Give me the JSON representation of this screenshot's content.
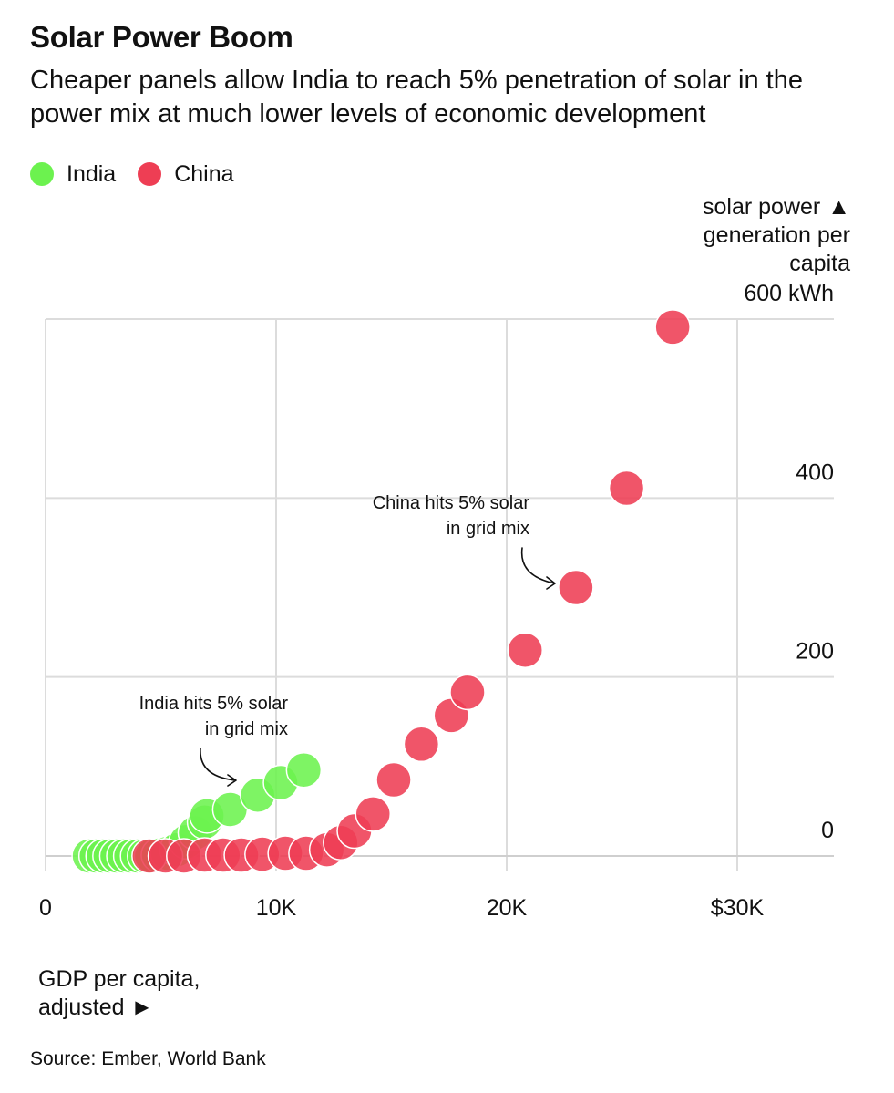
{
  "chart_data": {
    "type": "scatter",
    "title": "Solar Power Boom",
    "subtitle": "Cheaper panels allow India to reach 5% penetration of solar in the power mix at much lower levels of economic development",
    "ylabel_lines": [
      "solar power",
      "generation per",
      "capita"
    ],
    "ylabel_arrow": "▲",
    "xlabel_lines": [
      "GDP per capita,",
      "adjusted"
    ],
    "xlabel_arrow": "►",
    "xlim": [
      0,
      34500
    ],
    "ylim": [
      -25,
      600
    ],
    "x_ticks": [
      {
        "value": 0,
        "label": "0"
      },
      {
        "value": 10000,
        "label": "10K"
      },
      {
        "value": 20000,
        "label": "20K"
      },
      {
        "value": 30000,
        "label": "$30K"
      }
    ],
    "y_ticks": [
      {
        "value": 0,
        "label": "0"
      },
      {
        "value": 200,
        "label": "200"
      },
      {
        "value": 400,
        "label": "400"
      },
      {
        "value": 600,
        "label": "600 kWh"
      }
    ],
    "series": [
      {
        "name": "India",
        "color": "#6CF24F",
        "points": [
          {
            "x": 1900,
            "y": 0
          },
          {
            "x": 2200,
            "y": 0
          },
          {
            "x": 2500,
            "y": 0
          },
          {
            "x": 2800,
            "y": 0
          },
          {
            "x": 3100,
            "y": 0
          },
          {
            "x": 3400,
            "y": 0
          },
          {
            "x": 3700,
            "y": 0
          },
          {
            "x": 4000,
            "y": 0
          },
          {
            "x": 4300,
            "y": 0
          },
          {
            "x": 4600,
            "y": 0
          },
          {
            "x": 4900,
            "y": 1
          },
          {
            "x": 5300,
            "y": 3
          },
          {
            "x": 5700,
            "y": 7
          },
          {
            "x": 6100,
            "y": 16
          },
          {
            "x": 6500,
            "y": 26
          },
          {
            "x": 6900,
            "y": 38
          },
          {
            "x": 7000,
            "y": 45
          },
          {
            "x": 8000,
            "y": 52
          },
          {
            "x": 9200,
            "y": 68
          },
          {
            "x": 10200,
            "y": 82
          },
          {
            "x": 11200,
            "y": 96
          }
        ]
      },
      {
        "name": "China",
        "color": "#EE3E54",
        "points": [
          {
            "x": 4500,
            "y": 0
          },
          {
            "x": 5200,
            "y": 0
          },
          {
            "x": 6000,
            "y": 0
          },
          {
            "x": 6900,
            "y": 1
          },
          {
            "x": 7700,
            "y": 1
          },
          {
            "x": 8500,
            "y": 1
          },
          {
            "x": 9400,
            "y": 2
          },
          {
            "x": 10400,
            "y": 3
          },
          {
            "x": 11300,
            "y": 3
          },
          {
            "x": 12200,
            "y": 7
          },
          {
            "x": 12800,
            "y": 15
          },
          {
            "x": 13400,
            "y": 28
          },
          {
            "x": 14200,
            "y": 47
          },
          {
            "x": 15100,
            "y": 85
          },
          {
            "x": 16300,
            "y": 125
          },
          {
            "x": 17600,
            "y": 157
          },
          {
            "x": 18300,
            "y": 183
          },
          {
            "x": 20800,
            "y": 230
          },
          {
            "x": 23000,
            "y": 300
          },
          {
            "x": 25200,
            "y": 411
          },
          {
            "x": 27200,
            "y": 591
          }
        ]
      }
    ],
    "annotations": [
      {
        "lines": [
          "India hits 5% solar",
          "in grid mix"
        ],
        "series": "India"
      },
      {
        "lines": [
          "China hits 5% solar",
          "in grid mix"
        ],
        "series": "China"
      }
    ],
    "source": "Source: Ember, World Bank"
  }
}
